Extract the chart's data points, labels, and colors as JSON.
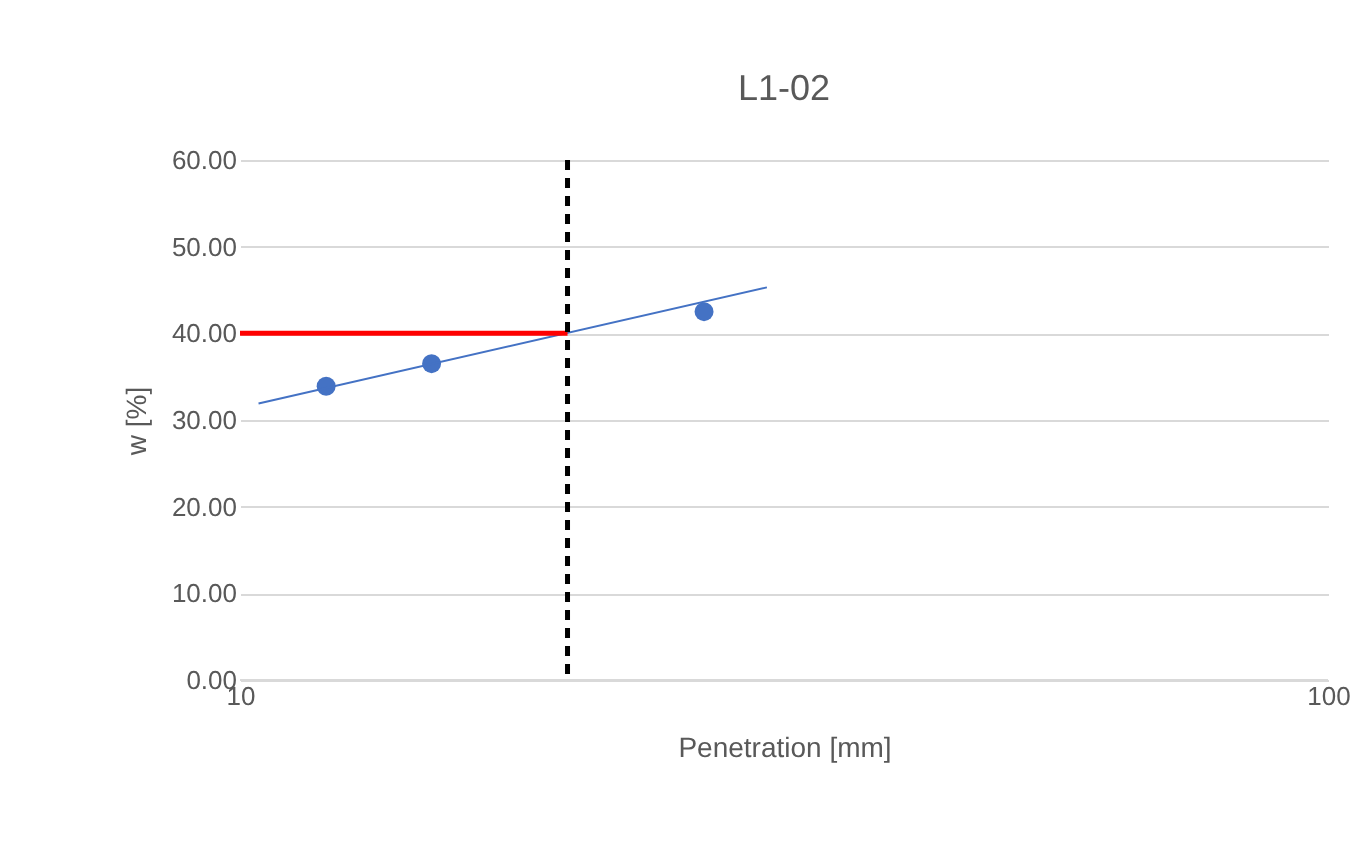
{
  "chart_data": {
    "type": "scatter",
    "title": "L1-02",
    "xlabel": "Penetration [mm]",
    "ylabel": "w [%]",
    "log": "x",
    "xlim": [
      10,
      100
    ],
    "xticks": [
      10,
      100
    ],
    "ylim": [
      0,
      60
    ],
    "yticks": [
      {
        "value": 0,
        "label": "0.00"
      },
      {
        "value": 10,
        "label": "10.00"
      },
      {
        "value": 20,
        "label": "20.00"
      },
      {
        "value": 30,
        "label": "30.00"
      },
      {
        "value": 40,
        "label": "40.00"
      },
      {
        "value": 50,
        "label": "50.00"
      },
      {
        "value": 60,
        "label": "60.00"
      }
    ],
    "grid": "y",
    "series": [
      {
        "type": "scatter",
        "marker": "circle",
        "color": "#4472c4",
        "x": [
          12,
          15,
          26.7
        ],
        "values": [
          33.9,
          36.5,
          42.5
        ]
      },
      {
        "type": "line",
        "color": "#4472c4",
        "x": [
          10.4,
          30.5
        ],
        "values": [
          31.9,
          45.3
        ]
      },
      {
        "type": "line",
        "color": "#ff0000",
        "x": [
          10,
          20
        ],
        "values": [
          40,
          40
        ]
      }
    ],
    "ref_lines": [
      {
        "axis": "x",
        "value": 20,
        "color": "#000000",
        "line_style": "dashed"
      }
    ]
  }
}
